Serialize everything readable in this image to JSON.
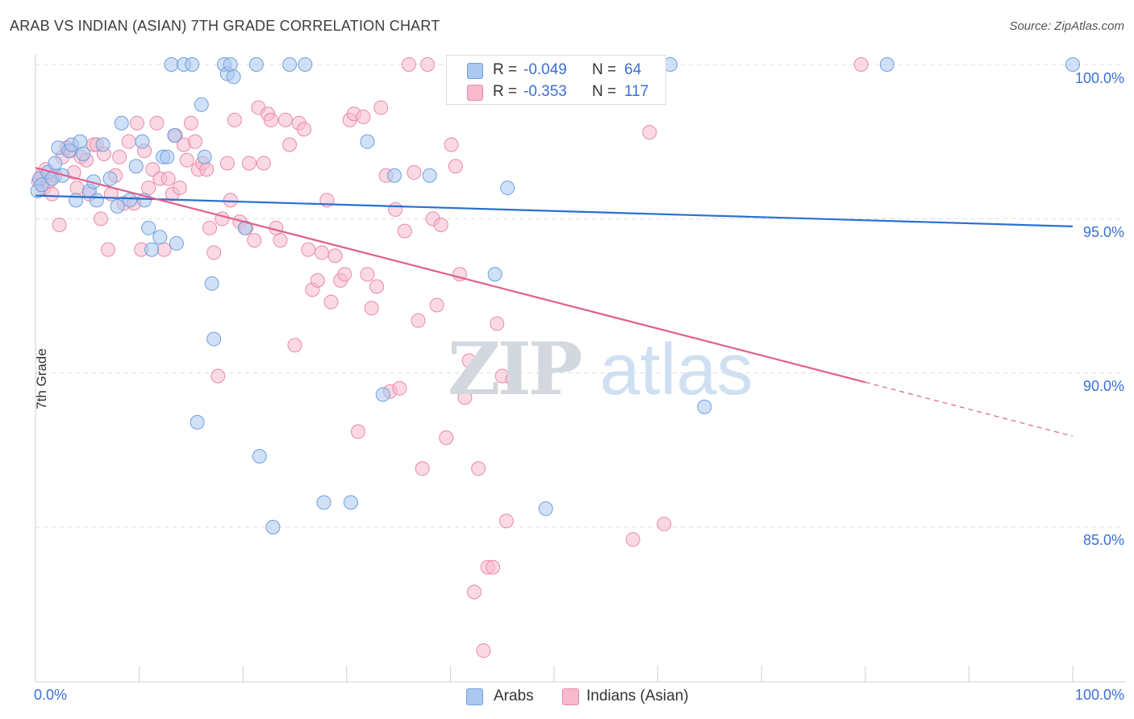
{
  "header": {
    "title": "ARAB VS INDIAN (ASIAN) 7TH GRADE CORRELATION CHART",
    "source": "Source: ZipAtlas.com"
  },
  "watermark": {
    "zip": "ZIP",
    "atlas": "atlas"
  },
  "legend": {
    "rows": [
      {
        "r_label": "R =",
        "r_value": "-0.049",
        "n_label": "N =",
        "n_value": "64",
        "color": "#aac8f0"
      },
      {
        "r_label": "R =",
        "r_value": "-0.353",
        "n_label": "N =",
        "n_value": "117",
        "color": "#f7b9cc"
      }
    ]
  },
  "colors": {
    "arab_fill": "#aac8f0",
    "arab_stroke": "#6f9fdc",
    "arab_line": "#2a6fd1",
    "indian_fill": "#f7b9cc",
    "indian_stroke": "#e88aa8",
    "indian_line": "#e0608e",
    "tick_text": "#3a6fd8",
    "grid": "#dcdcdc"
  },
  "chart_data": {
    "type": "scatter",
    "title": "ARAB VS INDIAN (ASIAN) 7TH GRADE CORRELATION CHART",
    "xlabel": "",
    "ylabel": "7th Grade",
    "xlim": [
      0,
      100
    ],
    "ylim": [
      80.3,
      101.0
    ],
    "x_tick_labels": [
      "0.0%",
      "100.0%"
    ],
    "y_ticks": [
      85,
      90,
      95,
      100
    ],
    "y_tick_labels": [
      "85.0%",
      "90.0%",
      "95.0%",
      "100.0%"
    ],
    "grid": true,
    "legend_position": "bottom",
    "series": [
      {
        "name": "Arabs",
        "trend": {
          "x": [
            0,
            100
          ],
          "y": [
            95.75,
            94.75
          ]
        },
        "points": [
          [
            0.2,
            95.9
          ],
          [
            0.4,
            96.3
          ],
          [
            0.6,
            96.1
          ],
          [
            1.2,
            96.5
          ],
          [
            1.6,
            96.3
          ],
          [
            1.9,
            96.8
          ],
          [
            2.2,
            97.3
          ],
          [
            2.6,
            96.4
          ],
          [
            3.2,
            97.2
          ],
          [
            3.5,
            97.4
          ],
          [
            3.9,
            95.6
          ],
          [
            4.3,
            97.5
          ],
          [
            4.6,
            97.1
          ],
          [
            5.2,
            95.9
          ],
          [
            5.6,
            96.2
          ],
          [
            5.9,
            95.6
          ],
          [
            6.5,
            97.4
          ],
          [
            7.2,
            96.3
          ],
          [
            7.9,
            95.4
          ],
          [
            8.3,
            98.1
          ],
          [
            9.1,
            95.6
          ],
          [
            9.7,
            96.7
          ],
          [
            10.3,
            97.5
          ],
          [
            10.5,
            95.6
          ],
          [
            10.9,
            94.7
          ],
          [
            11.2,
            94.0
          ],
          [
            12.0,
            94.4
          ],
          [
            12.3,
            97.0
          ],
          [
            12.7,
            97.0
          ],
          [
            13.1,
            100.0
          ],
          [
            13.4,
            97.7
          ],
          [
            13.6,
            94.2
          ],
          [
            14.3,
            100.0
          ],
          [
            15.1,
            100.0
          ],
          [
            15.6,
            88.4
          ],
          [
            16.0,
            98.7
          ],
          [
            16.3,
            97.0
          ],
          [
            17.0,
            92.9
          ],
          [
            17.2,
            91.1
          ],
          [
            18.2,
            100.0
          ],
          [
            18.5,
            99.7
          ],
          [
            18.8,
            100.0
          ],
          [
            19.1,
            99.6
          ],
          [
            20.2,
            94.7
          ],
          [
            21.3,
            100.0
          ],
          [
            21.6,
            87.3
          ],
          [
            22.9,
            85.0
          ],
          [
            24.5,
            100.0
          ],
          [
            26.0,
            100.0
          ],
          [
            27.8,
            85.8
          ],
          [
            30.4,
            85.8
          ],
          [
            32.0,
            97.5
          ],
          [
            33.5,
            89.3
          ],
          [
            34.6,
            96.4
          ],
          [
            38.0,
            96.4
          ],
          [
            44.3,
            93.2
          ],
          [
            45.5,
            96.0
          ],
          [
            47.5,
            100.0
          ],
          [
            47.9,
            100.0
          ],
          [
            49.2,
            85.6
          ],
          [
            61.2,
            100.0
          ],
          [
            64.5,
            88.9
          ],
          [
            82.1,
            100.0
          ],
          [
            100.0,
            100.0
          ]
        ]
      },
      {
        "name": "Indians (Asian)",
        "trend": {
          "x": [
            0,
            80
          ],
          "y": [
            96.65,
            89.7
          ]
        },
        "trend_dashed": {
          "x": [
            80,
            100
          ],
          "y": [
            89.7,
            87.95
          ]
        },
        "points": [
          [
            0.3,
            96.2
          ],
          [
            0.6,
            96.4
          ],
          [
            0.8,
            96.0
          ],
          [
            1.0,
            96.6
          ],
          [
            1.3,
            96.2
          ],
          [
            1.6,
            95.8
          ],
          [
            1.9,
            96.4
          ],
          [
            2.3,
            94.8
          ],
          [
            2.6,
            97.0
          ],
          [
            3.0,
            97.3
          ],
          [
            3.4,
            97.2
          ],
          [
            3.7,
            96.5
          ],
          [
            4.0,
            96.0
          ],
          [
            4.4,
            97.0
          ],
          [
            4.9,
            96.9
          ],
          [
            5.2,
            95.8
          ],
          [
            5.6,
            97.4
          ],
          [
            5.9,
            97.4
          ],
          [
            6.3,
            95.0
          ],
          [
            6.6,
            97.1
          ],
          [
            7.0,
            94.0
          ],
          [
            7.3,
            95.8
          ],
          [
            7.7,
            96.4
          ],
          [
            8.1,
            97.0
          ],
          [
            8.5,
            95.5
          ],
          [
            9.0,
            97.5
          ],
          [
            9.5,
            95.5
          ],
          [
            9.8,
            98.1
          ],
          [
            10.2,
            94.0
          ],
          [
            10.5,
            97.2
          ],
          [
            10.9,
            96.0
          ],
          [
            11.3,
            96.6
          ],
          [
            11.7,
            98.1
          ],
          [
            12.0,
            96.3
          ],
          [
            12.4,
            94.0
          ],
          [
            12.8,
            96.3
          ],
          [
            13.2,
            95.8
          ],
          [
            13.5,
            97.7
          ],
          [
            13.9,
            96.0
          ],
          [
            14.3,
            97.4
          ],
          [
            14.6,
            96.9
          ],
          [
            15.0,
            98.1
          ],
          [
            15.4,
            97.5
          ],
          [
            15.7,
            96.6
          ],
          [
            16.1,
            96.8
          ],
          [
            16.5,
            96.6
          ],
          [
            16.8,
            94.7
          ],
          [
            17.2,
            93.9
          ],
          [
            17.6,
            89.9
          ],
          [
            18.0,
            95.0
          ],
          [
            18.5,
            96.8
          ],
          [
            18.8,
            95.6
          ],
          [
            19.2,
            98.2
          ],
          [
            19.7,
            94.9
          ],
          [
            20.3,
            94.7
          ],
          [
            20.6,
            96.8
          ],
          [
            21.1,
            94.3
          ],
          [
            21.5,
            98.6
          ],
          [
            22.0,
            96.8
          ],
          [
            22.4,
            98.4
          ],
          [
            22.7,
            98.2
          ],
          [
            23.2,
            94.7
          ],
          [
            23.6,
            94.3
          ],
          [
            24.1,
            98.2
          ],
          [
            24.5,
            97.4
          ],
          [
            25.0,
            90.9
          ],
          [
            25.4,
            98.1
          ],
          [
            25.9,
            97.9
          ],
          [
            26.3,
            94.0
          ],
          [
            26.7,
            92.7
          ],
          [
            27.2,
            93.0
          ],
          [
            27.6,
            93.9
          ],
          [
            28.1,
            95.6
          ],
          [
            28.5,
            92.3
          ],
          [
            28.9,
            93.8
          ],
          [
            29.4,
            93.0
          ],
          [
            29.8,
            93.2
          ],
          [
            30.3,
            98.2
          ],
          [
            30.7,
            98.4
          ],
          [
            31.1,
            88.1
          ],
          [
            31.6,
            98.3
          ],
          [
            32.0,
            93.2
          ],
          [
            32.4,
            92.1
          ],
          [
            32.9,
            92.8
          ],
          [
            33.3,
            98.6
          ],
          [
            33.8,
            96.4
          ],
          [
            34.2,
            89.4
          ],
          [
            34.7,
            95.3
          ],
          [
            35.1,
            89.5
          ],
          [
            35.6,
            94.6
          ],
          [
            36.0,
            100.0
          ],
          [
            36.5,
            96.5
          ],
          [
            36.9,
            91.7
          ],
          [
            37.3,
            86.9
          ],
          [
            37.8,
            100.0
          ],
          [
            38.3,
            95.0
          ],
          [
            38.7,
            92.2
          ],
          [
            39.1,
            94.8
          ],
          [
            39.6,
            87.9
          ],
          [
            40.1,
            97.4
          ],
          [
            40.5,
            96.7
          ],
          [
            40.9,
            93.2
          ],
          [
            41.4,
            89.2
          ],
          [
            41.8,
            90.4
          ],
          [
            42.3,
            82.9
          ],
          [
            42.7,
            86.9
          ],
          [
            43.2,
            81.0
          ],
          [
            43.6,
            83.7
          ],
          [
            44.1,
            83.7
          ],
          [
            44.5,
            91.6
          ],
          [
            45.0,
            89.9
          ],
          [
            45.4,
            85.2
          ],
          [
            46.0,
            89.8
          ],
          [
            57.6,
            84.6
          ],
          [
            59.2,
            97.8
          ],
          [
            60.6,
            85.1
          ],
          [
            79.6,
            100.0
          ]
        ]
      }
    ]
  },
  "axis": {
    "y_label": "7th Grade",
    "x_min_label": "0.0%",
    "x_max_label": "100.0%"
  }
}
